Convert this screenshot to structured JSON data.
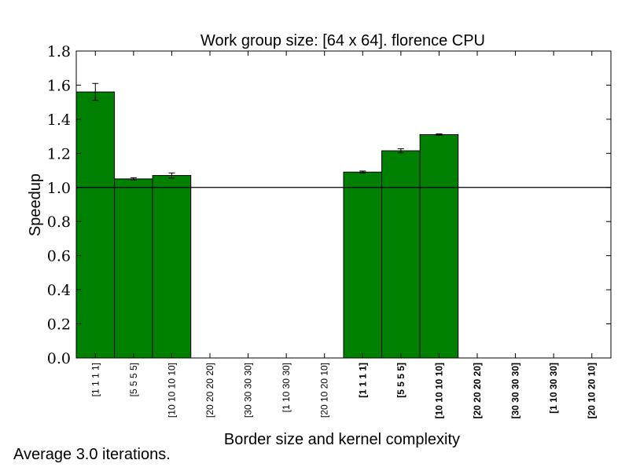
{
  "chart_data": {
    "type": "bar",
    "title": "Work group size: [64 x 64]. florence CPU",
    "xlabel": "Border size and kernel complexity",
    "ylabel": "Speedup",
    "ylim": [
      0.0,
      1.8
    ],
    "yticks": [
      "0.0",
      "0.2",
      "0.4",
      "0.6",
      "0.8",
      "1.0",
      "1.2",
      "1.4",
      "1.6",
      "1.8"
    ],
    "reference_line": 1.0,
    "bar_color": "#008000",
    "grid": false,
    "categories": [
      {
        "label": "[1 1 1 1]",
        "bold": false
      },
      {
        "label": "[5 5 5 5]",
        "bold": false
      },
      {
        "label": "[10 10 10 10]",
        "bold": false
      },
      {
        "label": "[20 20 20 20]",
        "bold": false
      },
      {
        "label": "[30 30 30 30]",
        "bold": false
      },
      {
        "label": "[1 10 30 30]",
        "bold": false
      },
      {
        "label": "[20 10 20 10]",
        "bold": false
      },
      {
        "label": "[1 1 1 1]",
        "bold": true
      },
      {
        "label": "[5 5 5 5]",
        "bold": true
      },
      {
        "label": "[10 10 10 10]",
        "bold": true
      },
      {
        "label": "[20 20 20 20]",
        "bold": true
      },
      {
        "label": "[30 30 30 30]",
        "bold": true
      },
      {
        "label": "[1 10 30 30]",
        "bold": true
      },
      {
        "label": "[20 10 20 10]",
        "bold": true
      }
    ],
    "values": [
      1.56,
      1.05,
      1.07,
      null,
      null,
      null,
      null,
      1.09,
      1.215,
      1.31,
      null,
      null,
      null,
      null
    ],
    "errors": [
      0.05,
      0.007,
      0.015,
      null,
      null,
      null,
      null,
      0.006,
      0.012,
      0.004,
      null,
      null,
      null,
      null
    ]
  },
  "footnote": "Average 3.0 iterations."
}
